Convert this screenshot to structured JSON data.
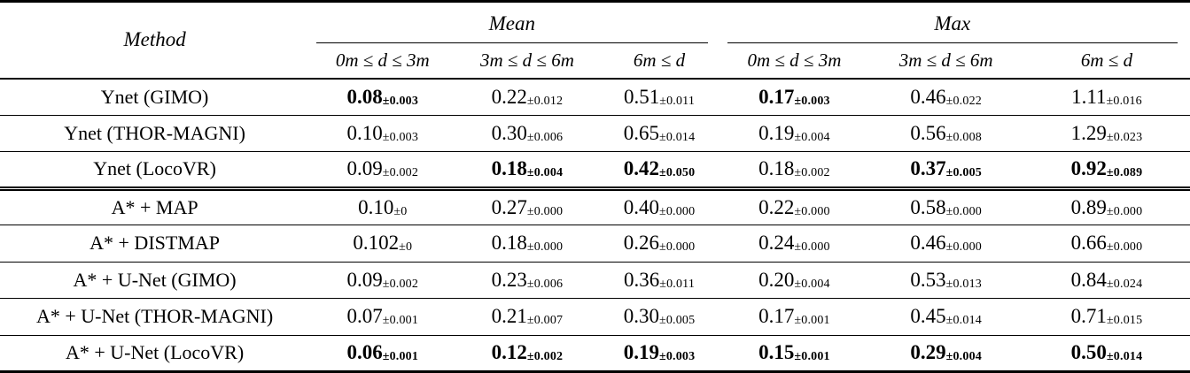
{
  "table": {
    "method_header": "Method",
    "groups": [
      {
        "label": "Mean",
        "subheaders": [
          "0m ≤ d ≤ 3m",
          "3m ≤ d ≤ 6m",
          "6m ≤ d"
        ]
      },
      {
        "label": "Max",
        "subheaders": [
          "0m ≤ d ≤ 3m",
          "3m ≤ d ≤ 6m",
          "6m ≤ d"
        ]
      }
    ],
    "rows": [
      {
        "method": "Ynet (GIMO)",
        "double_rule_below": false,
        "cells": [
          {
            "value": "0.08",
            "pm": "±0.003",
            "bold": true
          },
          {
            "value": "0.22",
            "pm": "±0.012",
            "bold": false
          },
          {
            "value": "0.51",
            "pm": "±0.011",
            "bold": false
          },
          {
            "value": "0.17",
            "pm": "±0.003",
            "bold": true
          },
          {
            "value": "0.46",
            "pm": "±0.022",
            "bold": false
          },
          {
            "value": "1.11",
            "pm": "±0.016",
            "bold": false
          }
        ]
      },
      {
        "method": "Ynet (THOR-MAGNI)",
        "double_rule_below": false,
        "cells": [
          {
            "value": "0.10",
            "pm": "±0.003",
            "bold": false
          },
          {
            "value": "0.30",
            "pm": "±0.006",
            "bold": false
          },
          {
            "value": "0.65",
            "pm": "±0.014",
            "bold": false
          },
          {
            "value": "0.19",
            "pm": "±0.004",
            "bold": false
          },
          {
            "value": "0.56",
            "pm": "±0.008",
            "bold": false
          },
          {
            "value": "1.29",
            "pm": "±0.023",
            "bold": false
          }
        ]
      },
      {
        "method": "Ynet (LocoVR)",
        "double_rule_below": true,
        "cells": [
          {
            "value": "0.09",
            "pm": "±0.002",
            "bold": false
          },
          {
            "value": "0.18",
            "pm": "±0.004",
            "bold": true
          },
          {
            "value": "0.42",
            "pm": "±0.050",
            "bold": true
          },
          {
            "value": "0.18",
            "pm": "±0.002",
            "bold": false
          },
          {
            "value": "0.37",
            "pm": "±0.005",
            "bold": true
          },
          {
            "value": "0.92",
            "pm": "±0.089",
            "bold": true
          }
        ]
      },
      {
        "method": "A* + MAP",
        "double_rule_below": false,
        "cells": [
          {
            "value": "0.10",
            "pm": "±0",
            "bold": false
          },
          {
            "value": "0.27",
            "pm": "±0.000",
            "bold": false
          },
          {
            "value": "0.40",
            "pm": "±0.000",
            "bold": false
          },
          {
            "value": "0.22",
            "pm": "±0.000",
            "bold": false
          },
          {
            "value": "0.58",
            "pm": "±0.000",
            "bold": false
          },
          {
            "value": "0.89",
            "pm": "±0.000",
            "bold": false
          }
        ]
      },
      {
        "method": "A* + DISTMAP",
        "double_rule_below": false,
        "cells": [
          {
            "value": "0.102",
            "pm": "±0",
            "bold": false
          },
          {
            "value": "0.18",
            "pm": "±0.000",
            "bold": false
          },
          {
            "value": "0.26",
            "pm": "±0.000",
            "bold": false
          },
          {
            "value": "0.24",
            "pm": "±0.000",
            "bold": false
          },
          {
            "value": "0.46",
            "pm": "±0.000",
            "bold": false
          },
          {
            "value": "0.66",
            "pm": "±0.000",
            "bold": false
          }
        ]
      },
      {
        "method": "A* + U-Net (GIMO)",
        "double_rule_below": false,
        "cells": [
          {
            "value": "0.09",
            "pm": "±0.002",
            "bold": false
          },
          {
            "value": "0.23",
            "pm": "±0.006",
            "bold": false
          },
          {
            "value": "0.36",
            "pm": "±0.011",
            "bold": false
          },
          {
            "value": "0.20",
            "pm": "±0.004",
            "bold": false
          },
          {
            "value": "0.53",
            "pm": "±0.013",
            "bold": false
          },
          {
            "value": "0.84",
            "pm": "±0.024",
            "bold": false
          }
        ]
      },
      {
        "method": "A* + U-Net (THOR-MAGNI)",
        "double_rule_below": false,
        "cells": [
          {
            "value": "0.07",
            "pm": "±0.001",
            "bold": false
          },
          {
            "value": "0.21",
            "pm": "±0.007",
            "bold": false
          },
          {
            "value": "0.30",
            "pm": "±0.005",
            "bold": false
          },
          {
            "value": "0.17",
            "pm": "±0.001",
            "bold": false
          },
          {
            "value": "0.45",
            "pm": "±0.014",
            "bold": false
          },
          {
            "value": "0.71",
            "pm": "±0.015",
            "bold": false
          }
        ]
      },
      {
        "method": "A* + U-Net (LocoVR)",
        "double_rule_below": false,
        "cells": [
          {
            "value": "0.06",
            "pm": "±0.001",
            "bold": true
          },
          {
            "value": "0.12",
            "pm": "±0.002",
            "bold": true
          },
          {
            "value": "0.19",
            "pm": "±0.003",
            "bold": true
          },
          {
            "value": "0.15",
            "pm": "±0.001",
            "bold": true
          },
          {
            "value": "0.29",
            "pm": "±0.004",
            "bold": true
          },
          {
            "value": "0.50",
            "pm": "±0.014",
            "bold": true
          }
        ]
      }
    ]
  }
}
